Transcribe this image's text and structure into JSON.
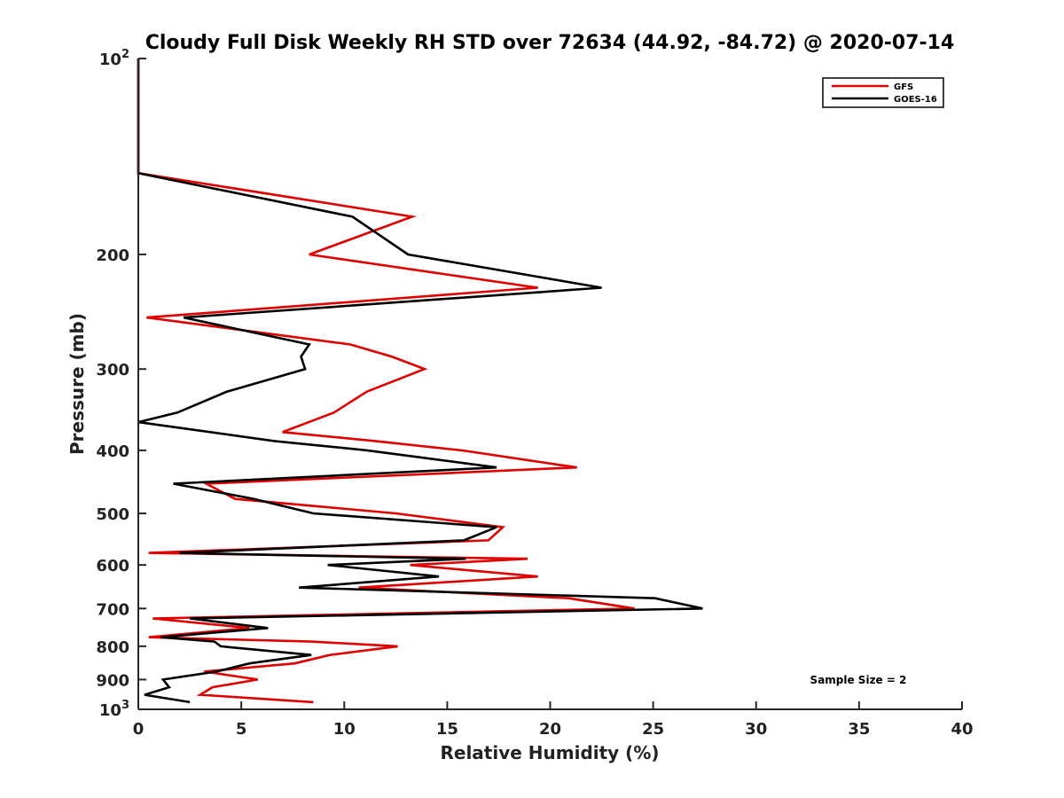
{
  "chart_data": {
    "type": "line",
    "title": "Cloudy Full Disk Weekly RH STD over 72634 (44.92, -84.72) @ 2020-07-14",
    "xlabel": "Relative Humidity (%)",
    "ylabel": "Pressure (mb)",
    "xlim": [
      0,
      40
    ],
    "ylim": [
      100,
      1000
    ],
    "yscale": "log",
    "y_reversed": true,
    "grid": false,
    "legend_position": "top-right",
    "x_ticks": [
      "0",
      "5",
      "10",
      "15",
      "20",
      "25",
      "30",
      "35",
      "40"
    ],
    "y_ticks": [
      {
        "value": 100,
        "label": "10",
        "sup": "2"
      },
      {
        "value": 200,
        "label": "200",
        "sup": ""
      },
      {
        "value": 300,
        "label": "300",
        "sup": ""
      },
      {
        "value": 400,
        "label": "400",
        "sup": ""
      },
      {
        "value": 500,
        "label": "500",
        "sup": ""
      },
      {
        "value": 600,
        "label": "600",
        "sup": ""
      },
      {
        "value": 700,
        "label": "700",
        "sup": ""
      },
      {
        "value": 800,
        "label": "800",
        "sup": ""
      },
      {
        "value": 900,
        "label": "900",
        "sup": ""
      },
      {
        "value": 1000,
        "label": "10",
        "sup": "3"
      }
    ],
    "annotation": "Sample Size = 2",
    "series": [
      {
        "name": "GFS",
        "color": "#e00000",
        "points": [
          [
            0,
            100
          ],
          [
            0,
            125
          ],
          [
            0,
            150
          ],
          [
            13.3,
            175
          ],
          [
            8.3,
            200
          ],
          [
            19.4,
            225
          ],
          [
            0.4,
            250
          ],
          [
            10.3,
            275
          ],
          [
            12.3,
            287
          ],
          [
            13.9,
            300
          ],
          [
            11.1,
            325
          ],
          [
            9.5,
            350
          ],
          [
            7.0,
            375
          ],
          [
            11.5,
            387
          ],
          [
            15.7,
            400
          ],
          [
            21.3,
            425
          ],
          [
            3.3,
            450
          ],
          [
            4.7,
            475
          ],
          [
            12.5,
            500
          ],
          [
            17.7,
            525
          ],
          [
            17.0,
            550
          ],
          [
            0.5,
            575
          ],
          [
            18.9,
            587
          ],
          [
            13.2,
            600
          ],
          [
            19.4,
            625
          ],
          [
            10.7,
            650
          ],
          [
            20.9,
            675
          ],
          [
            24.1,
            700
          ],
          [
            0.7,
            725
          ],
          [
            5.4,
            750
          ],
          [
            0.5,
            775
          ],
          [
            8.4,
            787
          ],
          [
            12.6,
            800
          ],
          [
            9.3,
            825
          ],
          [
            7.6,
            850
          ],
          [
            3.2,
            875
          ],
          [
            5.8,
            900
          ],
          [
            3.6,
            925
          ],
          [
            3.0,
            950
          ],
          [
            8.5,
            975
          ]
        ]
      },
      {
        "name": "GOES-16",
        "color": "#000000",
        "points": [
          [
            0,
            100
          ],
          [
            0,
            125
          ],
          [
            0,
            150
          ],
          [
            10.4,
            175
          ],
          [
            13.1,
            200
          ],
          [
            22.5,
            225
          ],
          [
            2.2,
            250
          ],
          [
            8.3,
            275
          ],
          [
            7.9,
            287
          ],
          [
            8.1,
            300
          ],
          [
            4.3,
            325
          ],
          [
            1.9,
            350
          ],
          [
            0,
            362
          ],
          [
            6.6,
            387
          ],
          [
            11.1,
            400
          ],
          [
            17.4,
            425
          ],
          [
            1.7,
            450
          ],
          [
            5.6,
            475
          ],
          [
            8.5,
            500
          ],
          [
            17.4,
            525
          ],
          [
            15.8,
            550
          ],
          [
            2.0,
            575
          ],
          [
            15.9,
            587
          ],
          [
            9.2,
            600
          ],
          [
            14.6,
            625
          ],
          [
            7.8,
            650
          ],
          [
            25.1,
            675
          ],
          [
            27.4,
            700
          ],
          [
            2.5,
            725
          ],
          [
            6.3,
            750
          ],
          [
            1.1,
            775
          ],
          [
            3.7,
            787
          ],
          [
            4.0,
            800
          ],
          [
            8.4,
            825
          ],
          [
            5.4,
            850
          ],
          [
            3.8,
            875
          ],
          [
            1.2,
            900
          ],
          [
            1.5,
            925
          ],
          [
            0.3,
            950
          ],
          [
            2.5,
            975
          ]
        ]
      }
    ]
  }
}
